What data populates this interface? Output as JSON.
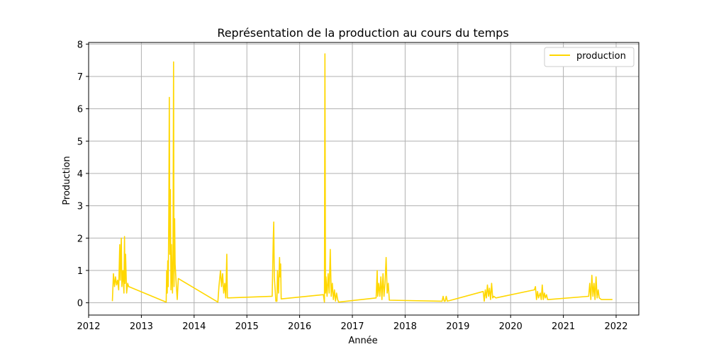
{
  "chart_data": {
    "type": "line",
    "title": "Représentation de la production au cours du temps",
    "xlabel": "Année",
    "ylabel": "Production",
    "xlim": [
      2012.0,
      2022.43
    ],
    "ylim": [
      -0.38,
      8.05
    ],
    "x_ticks": [
      2012,
      2013,
      2014,
      2015,
      2016,
      2017,
      2018,
      2019,
      2020,
      2021,
      2022
    ],
    "x_tick_labels": [
      "2012",
      "2013",
      "2014",
      "2015",
      "2016",
      "2017",
      "2018",
      "2019",
      "2020",
      "2021",
      "2022"
    ],
    "y_ticks": [
      0,
      1,
      2,
      3,
      4,
      5,
      6,
      7,
      8
    ],
    "y_tick_labels": [
      "0",
      "1",
      "2",
      "3",
      "4",
      "5",
      "6",
      "7",
      "8"
    ],
    "grid": true,
    "legend_position": "top-right",
    "series": [
      {
        "name": "production",
        "color": "#FFD700",
        "points": [
          [
            2012.45,
            0.05
          ],
          [
            2012.47,
            0.9
          ],
          [
            2012.49,
            0.5
          ],
          [
            2012.51,
            0.8
          ],
          [
            2012.53,
            0.55
          ],
          [
            2012.55,
            0.7
          ],
          [
            2012.57,
            0.4
          ],
          [
            2012.59,
            1.8
          ],
          [
            2012.6,
            0.7
          ],
          [
            2012.62,
            2.0
          ],
          [
            2012.63,
            0.5
          ],
          [
            2012.65,
            1.0
          ],
          [
            2012.67,
            0.3
          ],
          [
            2012.68,
            2.05
          ],
          [
            2012.69,
            0.6
          ],
          [
            2012.7,
            1.5
          ],
          [
            2012.72,
            0.3
          ],
          [
            2012.74,
            0.6
          ],
          [
            2012.76,
            0.5
          ],
          [
            2013.47,
            0.02
          ],
          [
            2013.48,
            1.0
          ],
          [
            2013.49,
            0.3
          ],
          [
            2013.5,
            1.3
          ],
          [
            2013.51,
            0.5
          ],
          [
            2013.52,
            2.8
          ],
          [
            2013.53,
            6.35
          ],
          [
            2013.54,
            1.5
          ],
          [
            2013.55,
            3.5
          ],
          [
            2013.56,
            0.4
          ],
          [
            2013.57,
            1.8
          ],
          [
            2013.58,
            0.8
          ],
          [
            2013.59,
            0.3
          ],
          [
            2013.6,
            1.5
          ],
          [
            2013.61,
            7.45
          ],
          [
            2013.62,
            0.5
          ],
          [
            2013.63,
            2.6
          ],
          [
            2013.64,
            1.2
          ],
          [
            2013.66,
            0.6
          ],
          [
            2013.68,
            0.1
          ],
          [
            2013.7,
            0.75
          ],
          [
            2014.45,
            0.02
          ],
          [
            2014.47,
            0.5
          ],
          [
            2014.5,
            1.0
          ],
          [
            2014.52,
            0.5
          ],
          [
            2014.54,
            0.9
          ],
          [
            2014.56,
            0.3
          ],
          [
            2014.58,
            0.6
          ],
          [
            2014.6,
            0.15
          ],
          [
            2014.62,
            1.5
          ],
          [
            2014.63,
            0.15
          ],
          [
            2015.48,
            0.2
          ],
          [
            2015.5,
            1.95
          ],
          [
            2015.51,
            2.5
          ],
          [
            2015.52,
            0.8
          ],
          [
            2015.54,
            0.3
          ],
          [
            2015.55,
            0.05
          ],
          [
            2015.57,
            0.05
          ],
          [
            2015.58,
            1.0
          ],
          [
            2015.6,
            0.3
          ],
          [
            2015.62,
            1.4
          ],
          [
            2015.63,
            0.8
          ],
          [
            2015.64,
            1.2
          ],
          [
            2015.65,
            0.12
          ],
          [
            2016.45,
            0.25
          ],
          [
            2016.47,
            0.02
          ],
          [
            2016.48,
            7.7
          ],
          [
            2016.49,
            0.3
          ],
          [
            2016.5,
            0.8
          ],
          [
            2016.52,
            0.2
          ],
          [
            2016.54,
            0.9
          ],
          [
            2016.56,
            0.3
          ],
          [
            2016.58,
            1.65
          ],
          [
            2016.6,
            0.2
          ],
          [
            2016.62,
            0.6
          ],
          [
            2016.64,
            0.1
          ],
          [
            2016.66,
            0.4
          ],
          [
            2016.68,
            0.05
          ],
          [
            2016.7,
            0.3
          ],
          [
            2016.72,
            0.1
          ],
          [
            2016.74,
            0.02
          ],
          [
            2017.45,
            0.15
          ],
          [
            2017.47,
            1.0
          ],
          [
            2017.48,
            0.2
          ],
          [
            2017.5,
            0.6
          ],
          [
            2017.52,
            0.2
          ],
          [
            2017.54,
            0.8
          ],
          [
            2017.56,
            0.1
          ],
          [
            2017.58,
            0.9
          ],
          [
            2017.6,
            0.2
          ],
          [
            2017.62,
            0.6
          ],
          [
            2017.64,
            1.4
          ],
          [
            2017.66,
            0.3
          ],
          [
            2017.68,
            0.6
          ],
          [
            2017.7,
            0.08
          ],
          [
            2018.7,
            0.05
          ],
          [
            2018.72,
            0.2
          ],
          [
            2018.74,
            0.05
          ],
          [
            2018.76,
            0.05
          ],
          [
            2018.78,
            0.2
          ],
          [
            2018.8,
            0.05
          ],
          [
            2019.48,
            0.35
          ],
          [
            2019.5,
            0.05
          ],
          [
            2019.52,
            0.4
          ],
          [
            2019.54,
            0.15
          ],
          [
            2019.56,
            0.55
          ],
          [
            2019.58,
            0.2
          ],
          [
            2019.6,
            0.45
          ],
          [
            2019.62,
            0.1
          ],
          [
            2019.64,
            0.6
          ],
          [
            2019.66,
            0.15
          ],
          [
            2019.68,
            0.2
          ],
          [
            2019.72,
            0.15
          ],
          [
            2020.45,
            0.4
          ],
          [
            2020.47,
            0.5
          ],
          [
            2020.49,
            0.1
          ],
          [
            2020.51,
            0.35
          ],
          [
            2020.53,
            0.15
          ],
          [
            2020.56,
            0.3
          ],
          [
            2020.58,
            0.1
          ],
          [
            2020.6,
            0.55
          ],
          [
            2020.62,
            0.1
          ],
          [
            2020.64,
            0.3
          ],
          [
            2020.66,
            0.15
          ],
          [
            2020.68,
            0.25
          ],
          [
            2020.7,
            0.1
          ],
          [
            2020.72,
            0.1
          ],
          [
            2021.48,
            0.2
          ],
          [
            2021.5,
            0.6
          ],
          [
            2021.52,
            0.1
          ],
          [
            2021.54,
            0.85
          ],
          [
            2021.56,
            0.2
          ],
          [
            2021.58,
            0.6
          ],
          [
            2021.6,
            0.1
          ],
          [
            2021.62,
            0.8
          ],
          [
            2021.64,
            0.15
          ],
          [
            2021.66,
            0.4
          ],
          [
            2021.68,
            0.15
          ],
          [
            2021.72,
            0.1
          ],
          [
            2021.8,
            0.1
          ],
          [
            2021.93,
            0.1
          ]
        ]
      }
    ]
  }
}
